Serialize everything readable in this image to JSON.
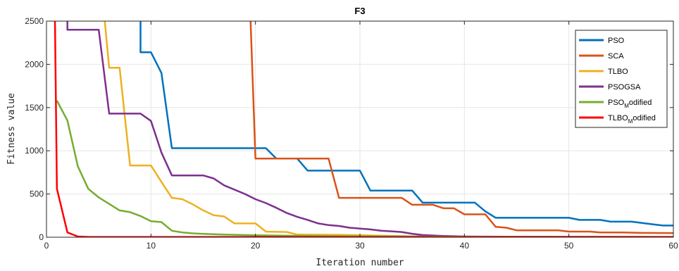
{
  "chart_data": {
    "type": "line",
    "title": "F3",
    "xlabel": "Iteration number",
    "ylabel": "Fitness value",
    "xlim": [
      0,
      60
    ],
    "ylim": [
      0,
      2500
    ],
    "xticks": [
      0,
      10,
      20,
      30,
      40,
      50,
      60
    ],
    "yticks": [
      0,
      500,
      1000,
      1500,
      2000,
      2500
    ],
    "grid": true,
    "legend_position": "top-right",
    "series": [
      {
        "name": "PSO",
        "name_main": "PSO",
        "name_sub": "",
        "name_tail": "",
        "color": "#0072BD",
        "points": [
          [
            9,
            2600
          ],
          [
            9,
            2140
          ],
          [
            10,
            2140
          ],
          [
            11,
            1900
          ],
          [
            12,
            1030
          ],
          [
            21,
            1030
          ],
          [
            22,
            910
          ],
          [
            24,
            910
          ],
          [
            25,
            770
          ],
          [
            30,
            770
          ],
          [
            31,
            540
          ],
          [
            35,
            540
          ],
          [
            36,
            400
          ],
          [
            41,
            400
          ],
          [
            42,
            300
          ],
          [
            43,
            225
          ],
          [
            50,
            225
          ],
          [
            51,
            200
          ],
          [
            53,
            200
          ],
          [
            54,
            180
          ],
          [
            56,
            180
          ],
          [
            58,
            150
          ],
          [
            59,
            135
          ],
          [
            60,
            135
          ]
        ]
      },
      {
        "name": "SCA",
        "name_main": "SCA",
        "name_sub": "",
        "name_tail": "",
        "color": "#D95319",
        "points": [
          [
            19.5,
            2600
          ],
          [
            20,
            910
          ],
          [
            27,
            910
          ],
          [
            28,
            455
          ],
          [
            34,
            455
          ],
          [
            35,
            375
          ],
          [
            37,
            375
          ],
          [
            38,
            335
          ],
          [
            39,
            335
          ],
          [
            40,
            265
          ],
          [
            42,
            265
          ],
          [
            43,
            120
          ],
          [
            44,
            110
          ],
          [
            45,
            80
          ],
          [
            49,
            80
          ],
          [
            50,
            65
          ],
          [
            52,
            65
          ],
          [
            53,
            55
          ],
          [
            55,
            55
          ],
          [
            57,
            50
          ],
          [
            60,
            48
          ]
        ]
      },
      {
        "name": "TLBO",
        "name_main": "TLBO",
        "name_sub": "",
        "name_tail": "",
        "color": "#EDB120",
        "points": [
          [
            5.5,
            2600
          ],
          [
            6,
            1960
          ],
          [
            7,
            1960
          ],
          [
            8,
            830
          ],
          [
            10,
            830
          ],
          [
            11,
            640
          ],
          [
            12,
            455
          ],
          [
            13,
            440
          ],
          [
            14,
            380
          ],
          [
            15,
            310
          ],
          [
            16,
            255
          ],
          [
            17,
            240
          ],
          [
            18,
            160
          ],
          [
            20,
            160
          ],
          [
            21,
            65
          ],
          [
            23,
            60
          ],
          [
            24,
            30
          ],
          [
            28,
            28
          ],
          [
            31,
            20
          ],
          [
            35,
            10
          ],
          [
            40,
            5
          ],
          [
            60,
            3
          ]
        ]
      },
      {
        "name": "PSOGSA",
        "name_main": "PSOGSA",
        "name_sub": "",
        "name_tail": "",
        "color": "#7E2F8E",
        "points": [
          [
            2,
            2600
          ],
          [
            2,
            2400
          ],
          [
            5,
            2400
          ],
          [
            6,
            1430
          ],
          [
            9,
            1430
          ],
          [
            10,
            1345
          ],
          [
            11,
            980
          ],
          [
            12,
            715
          ],
          [
            15,
            715
          ],
          [
            16,
            680
          ],
          [
            17,
            600
          ],
          [
            19,
            500
          ],
          [
            20,
            440
          ],
          [
            21,
            395
          ],
          [
            22,
            340
          ],
          [
            23,
            280
          ],
          [
            24,
            235
          ],
          [
            25,
            200
          ],
          [
            26,
            160
          ],
          [
            27,
            140
          ],
          [
            28,
            130
          ],
          [
            29,
            110
          ],
          [
            30,
            100
          ],
          [
            31,
            90
          ],
          [
            32,
            75
          ],
          [
            33,
            68
          ],
          [
            34,
            60
          ],
          [
            35,
            40
          ],
          [
            36,
            25
          ],
          [
            38,
            15
          ],
          [
            40,
            8
          ],
          [
            45,
            5
          ],
          [
            60,
            3
          ]
        ]
      },
      {
        "name": "PSOModified",
        "name_main": "PSO",
        "name_sub": "M",
        "name_tail": "odified",
        "color": "#77AC30",
        "points": [
          [
            1,
            1580
          ],
          [
            2,
            1350
          ],
          [
            3,
            820
          ],
          [
            4,
            560
          ],
          [
            5,
            460
          ],
          [
            6,
            385
          ],
          [
            7,
            310
          ],
          [
            8,
            290
          ],
          [
            9,
            245
          ],
          [
            10,
            185
          ],
          [
            11,
            175
          ],
          [
            12,
            75
          ],
          [
            13,
            55
          ],
          [
            14,
            45
          ],
          [
            15,
            38
          ],
          [
            17,
            30
          ],
          [
            20,
            22
          ],
          [
            25,
            15
          ],
          [
            30,
            10
          ],
          [
            40,
            5
          ],
          [
            60,
            3
          ]
        ]
      },
      {
        "name": "TLBOModified",
        "name_main": "TLBO",
        "name_sub": "M",
        "name_tail": "odified",
        "color": "#FF0000",
        "points": [
          [
            0.8,
            2600
          ],
          [
            1,
            560
          ],
          [
            2,
            55
          ],
          [
            3,
            8
          ],
          [
            4,
            3
          ],
          [
            60,
            2
          ]
        ]
      }
    ]
  }
}
